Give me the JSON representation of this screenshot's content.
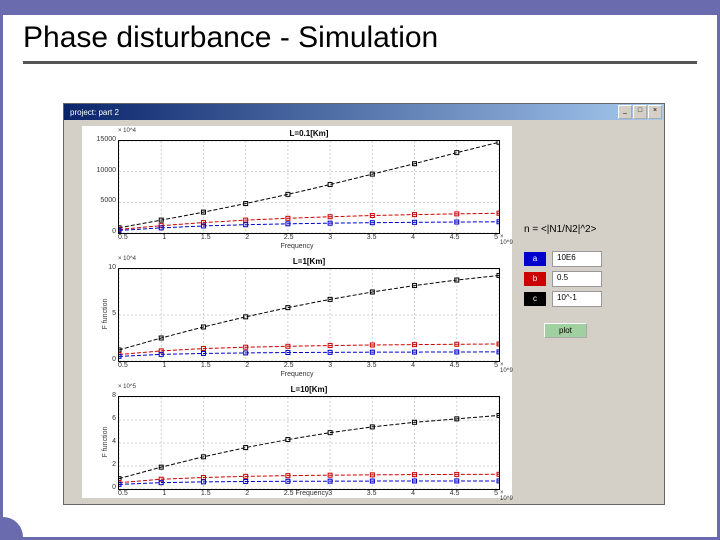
{
  "slide": {
    "title": "Phase disturbance - Simulation",
    "border_color": "#6a6aae"
  },
  "window": {
    "title": "project: part 2",
    "bg_color": "#d4d0c8"
  },
  "charts": {
    "xlim": [
      0.5,
      5
    ],
    "xticks": [
      0.5,
      1,
      1.5,
      2,
      2.5,
      3,
      3.5,
      4,
      4.5,
      5
    ],
    "xlabel": "Frequency",
    "xexp": "× 10^9",
    "ylabel": "F function",
    "subplot1": {
      "title": "L=0.1[Km]",
      "yexp": "× 10^4",
      "ylim": [
        0,
        15000
      ],
      "yticks": [
        0,
        5000,
        10000,
        15000
      ],
      "series_black": [
        [
          0.5,
          850
        ],
        [
          1,
          2100
        ],
        [
          1.5,
          3400
        ],
        [
          2,
          4800
        ],
        [
          2.5,
          6300
        ],
        [
          3,
          7900
        ],
        [
          3.5,
          9600
        ],
        [
          4,
          11300
        ],
        [
          4.5,
          13100
        ],
        [
          5,
          14800
        ]
      ],
      "series_red": [
        [
          0.5,
          580
        ],
        [
          1,
          1200
        ],
        [
          1.5,
          1700
        ],
        [
          2,
          2100
        ],
        [
          2.5,
          2400
        ],
        [
          3,
          2650
        ],
        [
          3.5,
          2850
        ],
        [
          4,
          3000
        ],
        [
          4.5,
          3120
        ],
        [
          5,
          3220
        ]
      ],
      "series_blue": [
        [
          0.5,
          420
        ],
        [
          1,
          830
        ],
        [
          1.5,
          1150
        ],
        [
          2,
          1350
        ],
        [
          2.5,
          1500
        ],
        [
          3,
          1600
        ],
        [
          3.5,
          1680
        ],
        [
          4,
          1740
        ],
        [
          4.5,
          1790
        ],
        [
          5,
          1830
        ]
      ]
    },
    "subplot2": {
      "title": "L=1[Km]",
      "yexp": "× 10^4",
      "ylim": [
        0,
        10
      ],
      "yticks": [
        0,
        5,
        10
      ],
      "series_black": [
        [
          0.5,
          1.2
        ],
        [
          1,
          2.5
        ],
        [
          1.5,
          3.7
        ],
        [
          2,
          4.8
        ],
        [
          2.5,
          5.8
        ],
        [
          3,
          6.7
        ],
        [
          3.5,
          7.5
        ],
        [
          4,
          8.2
        ],
        [
          4.5,
          8.8
        ],
        [
          5,
          9.3
        ]
      ],
      "series_red": [
        [
          0.5,
          0.7
        ],
        [
          1,
          1.1
        ],
        [
          1.5,
          1.35
        ],
        [
          2,
          1.5
        ],
        [
          2.5,
          1.6
        ],
        [
          3,
          1.68
        ],
        [
          3.5,
          1.74
        ],
        [
          4,
          1.78
        ],
        [
          4.5,
          1.82
        ],
        [
          5,
          1.85
        ]
      ],
      "series_blue": [
        [
          0.5,
          0.5
        ],
        [
          1,
          0.72
        ],
        [
          1.5,
          0.82
        ],
        [
          2,
          0.88
        ],
        [
          2.5,
          0.92
        ],
        [
          3,
          0.94
        ],
        [
          3.5,
          0.96
        ],
        [
          4,
          0.97
        ],
        [
          4.5,
          0.98
        ],
        [
          5,
          0.99
        ]
      ]
    },
    "subplot3": {
      "title": "L=10[Km]",
      "yexp": "× 10^5",
      "ylim": [
        0,
        8
      ],
      "yticks": [
        0,
        2,
        4,
        6,
        8
      ],
      "series_black": [
        [
          0.5,
          0.9
        ],
        [
          1,
          1.9
        ],
        [
          1.5,
          2.8
        ],
        [
          2,
          3.6
        ],
        [
          2.5,
          4.3
        ],
        [
          3,
          4.9
        ],
        [
          3.5,
          5.4
        ],
        [
          4,
          5.8
        ],
        [
          4.5,
          6.1
        ],
        [
          5,
          6.4
        ]
      ],
      "series_red": [
        [
          0.5,
          0.55
        ],
        [
          1,
          0.85
        ],
        [
          1.5,
          1.0
        ],
        [
          2,
          1.1
        ],
        [
          2.5,
          1.16
        ],
        [
          3,
          1.2
        ],
        [
          3.5,
          1.23
        ],
        [
          4,
          1.25
        ],
        [
          4.5,
          1.27
        ],
        [
          5,
          1.28
        ]
      ],
      "series_blue": [
        [
          0.5,
          0.4
        ],
        [
          1,
          0.55
        ],
        [
          1.5,
          0.62
        ],
        [
          2,
          0.65
        ],
        [
          2.5,
          0.67
        ],
        [
          3,
          0.68
        ],
        [
          3.5,
          0.69
        ],
        [
          4,
          0.695
        ],
        [
          4.5,
          0.7
        ],
        [
          5,
          0.7
        ]
      ]
    },
    "colors": {
      "black": "#000000",
      "red": "#cc0000",
      "blue": "#0000cc",
      "grid": "#d0d0d0"
    }
  },
  "right_panel": {
    "formula": "n = <|N1/N2|^2>",
    "params": [
      {
        "label": "a",
        "value": "10E6",
        "color_class": "a"
      },
      {
        "label": "b",
        "value": "0.5",
        "color_class": "b"
      },
      {
        "label": "c",
        "value": "10^-1",
        "color_class": "c"
      }
    ],
    "plot_button": "plot"
  }
}
